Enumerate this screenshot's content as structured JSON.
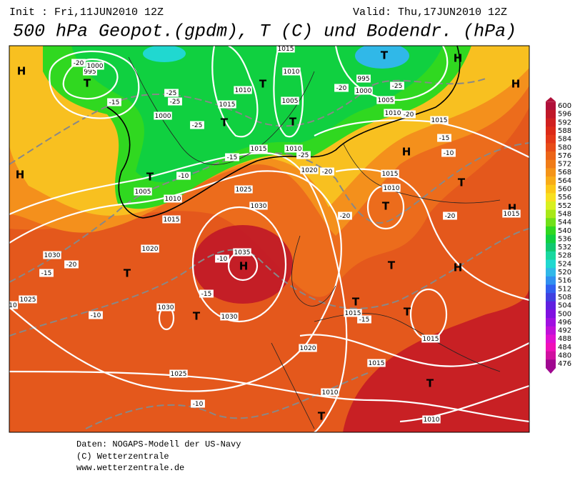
{
  "header": {
    "init": "Init : Fri,11JUN2010 12Z",
    "valid": "Valid: Thu,17JUN2010 12Z",
    "title": "500 hPa Geopot.(gpdm), T (C) und Bodendr. (hPa)"
  },
  "footer": [
    "Daten: NOGAPS-Modell der US-Navy",
    "(C) Wetterzentrale",
    "www.wetterzentrale.de"
  ],
  "colorbar": {
    "labels": [
      "600",
      "596",
      "592",
      "588",
      "584",
      "580",
      "576",
      "572",
      "568",
      "564",
      "560",
      "556",
      "552",
      "548",
      "544",
      "540",
      "536",
      "532",
      "528",
      "524",
      "520",
      "516",
      "512",
      "508",
      "504",
      "500",
      "496",
      "492",
      "488",
      "484",
      "480",
      "476"
    ],
    "colors": [
      "#b0103a",
      "#c01828",
      "#d02020",
      "#dc2a18",
      "#e43818",
      "#e84c18",
      "#ec6418",
      "#f07c18",
      "#f49418",
      "#f8ac18",
      "#fcc818",
      "#f8e020",
      "#d8f020",
      "#a8e818",
      "#70e018",
      "#30d820",
      "#10d040",
      "#10c870",
      "#18d8a0",
      "#20d8d0",
      "#30b8e8",
      "#3090f0",
      "#3060f0",
      "#4040e0",
      "#6020e0",
      "#8010e0",
      "#a010e0",
      "#c010d8",
      "#e010d0",
      "#f010b8",
      "#d010a0",
      "#a00890"
    ]
  },
  "markers": [
    "H",
    "H",
    "T",
    "T",
    "T",
    "T",
    "T",
    "H",
    "T",
    "T",
    "T",
    "H",
    "H",
    "H",
    "T",
    "T",
    "T",
    "H",
    "H",
    "T",
    "T",
    "T",
    "T"
  ],
  "labels": [
    "995",
    "1000",
    "1000",
    "1005",
    "1010",
    "1015",
    "1020",
    "1030",
    "1025",
    "1030",
    "1030",
    "1035",
    "1030",
    "1025",
    "1015",
    "1010",
    "1015",
    "1010",
    "1005",
    "1015",
    "1010",
    "1020",
    "995",
    "1000",
    "1005",
    "1010",
    "1015",
    "1015",
    "1010",
    "1015",
    "1015",
    "1015",
    "1015",
    "1020",
    "1025",
    "1010",
    "1010",
    "10",
    "-20",
    "-15",
    "-25",
    "-25",
    "-25",
    "-15",
    "-10",
    "-15",
    "-20",
    "-10",
    "-15",
    "-10",
    "-10",
    "-20",
    "-25",
    "-20",
    "-20",
    "-15",
    "-20",
    "-20",
    "-10",
    "-15",
    "-25"
  ]
}
